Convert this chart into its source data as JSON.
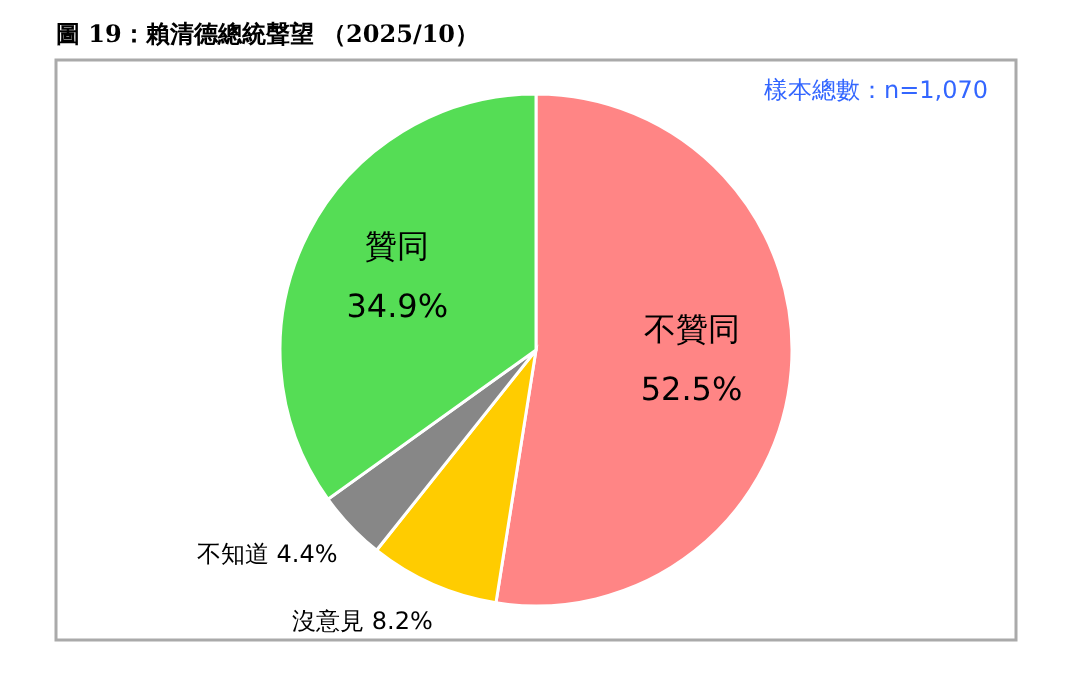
{
  "chart_data": {
    "type": "pie",
    "title": "圖 19：賴清德總統聲望 （2025/10）",
    "categories": [
      "不贊同",
      "沒意見",
      "不知道",
      "贊同"
    ],
    "values": [
      52.5,
      8.2,
      4.4,
      34.9
    ],
    "value_labels": [
      "52.5%",
      "8.2%",
      "4.4%",
      "34.9%"
    ],
    "colors": [
      "#ff8585",
      "#ffcc00",
      "#878787",
      "#55dd55"
    ],
    "annotations": [
      "樣本總數：n=1,070"
    ],
    "legend": false
  }
}
